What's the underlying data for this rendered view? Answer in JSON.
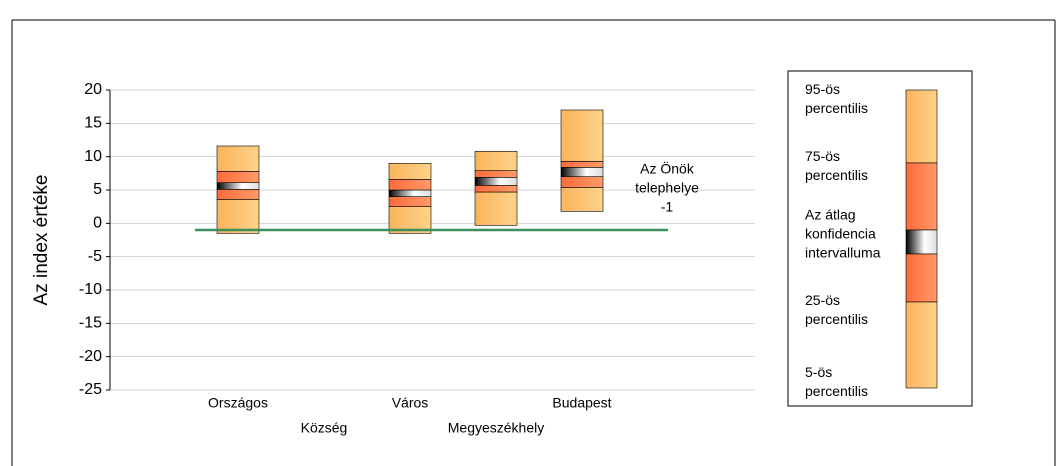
{
  "chart_data": {
    "type": "percentile-box",
    "y_label": "Az index értéke",
    "categories": [
      "Országos",
      "Község",
      "Város",
      "Megyeszékhely",
      "Budapest"
    ],
    "p5": [
      -1.5,
      null,
      -1.5,
      -0.3,
      1.8
    ],
    "p25": [
      3.6,
      null,
      2.5,
      4.7,
      5.4
    ],
    "ci_low": [
      5.1,
      null,
      4.0,
      5.7,
      7.0
    ],
    "ci_high": [
      6.1,
      null,
      5.0,
      6.9,
      8.4
    ],
    "p75": [
      7.8,
      null,
      6.6,
      7.9,
      9.3
    ],
    "p95": [
      11.6,
      null,
      9.0,
      10.8,
      17.0
    ],
    "reference": {
      "label": [
        "Az Önök",
        "telephelye"
      ],
      "value": -1,
      "color": "#3a8f5a"
    },
    "ylim": [
      -25,
      20
    ],
    "yticks": [
      -25,
      -20,
      -15,
      -10,
      -5,
      0,
      5,
      10,
      15,
      20
    ],
    "grid": true,
    "legend": [
      [
        "95-ös",
        "percentilis"
      ],
      [
        "75-ös",
        "percentilis"
      ],
      [
        "Az átlag",
        "konfidencia",
        "intervalluma"
      ],
      [
        "25-ös",
        "percentilis"
      ],
      [
        "5-ös",
        "percentilis"
      ]
    ]
  }
}
